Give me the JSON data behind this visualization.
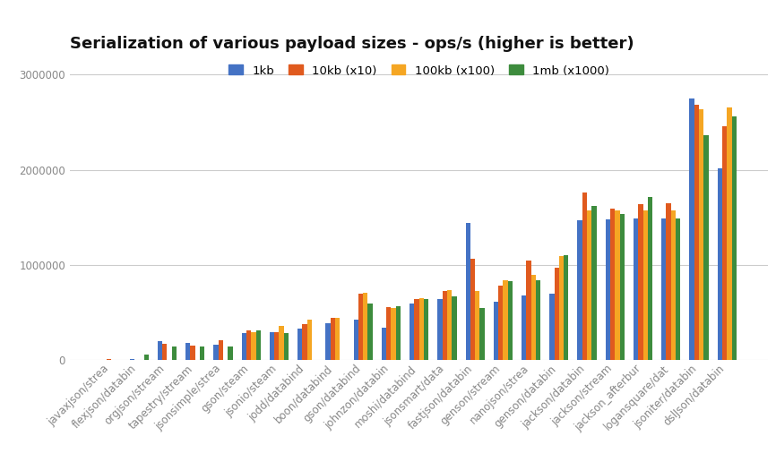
{
  "title": "Serialization of various payload sizes - ops/s (higher is better)",
  "categories": [
    "javaxjson/strea",
    "flexjson/databin",
    "orgjson/stream",
    "tapestry/stream",
    "jsonsimple/strea",
    "gson/steam",
    "jsonio/steam",
    "jodd/databind",
    "boon/databind",
    "gson/databind",
    "johnzon/databin",
    "moshi/databind",
    "jsonsmart/data",
    "fastjson/databin",
    "genson/stream",
    "nanojson/strea",
    "genson/databin",
    "jackson/databin",
    "jackson/stream",
    "jackson_afterbur",
    "logansquare/dat",
    "jsoniter/databin",
    "dslJson/databin"
  ],
  "series": {
    "1kb": [
      8000,
      15000,
      200000,
      185000,
      160000,
      285000,
      295000,
      330000,
      390000,
      430000,
      340000,
      600000,
      640000,
      1440000,
      615000,
      680000,
      700000,
      1470000,
      1480000,
      1490000,
      1490000,
      2750000,
      2020000
    ],
    "10kb_x10": [
      12000,
      5000,
      170000,
      155000,
      215000,
      315000,
      295000,
      380000,
      445000,
      700000,
      555000,
      640000,
      730000,
      1065000,
      780000,
      1045000,
      975000,
      1760000,
      1590000,
      1640000,
      1650000,
      2680000,
      2460000
    ],
    "100kb_x100": [
      5000,
      3000,
      5000,
      5000,
      5000,
      295000,
      360000,
      425000,
      445000,
      710000,
      550000,
      650000,
      740000,
      730000,
      840000,
      900000,
      1095000,
      1570000,
      1575000,
      1575000,
      1575000,
      2640000,
      2650000
    ],
    "1mb_x1000": [
      5000,
      65000,
      150000,
      145000,
      145000,
      315000,
      290000,
      5000,
      5000,
      600000,
      565000,
      640000,
      670000,
      545000,
      835000,
      840000,
      1105000,
      1625000,
      1540000,
      1715000,
      1490000,
      2360000,
      2560000
    ]
  },
  "colors": {
    "1kb": "#4472c4",
    "10kb_x10": "#e05a1e",
    "100kb_x100": "#f5a623",
    "1mb_x1000": "#3d8c3d"
  },
  "legend_labels": [
    "1kb",
    "10kb (x10)",
    "100kb (x100)",
    "1mb (x1000)"
  ],
  "ylim": [
    0,
    3200000
  ],
  "yticks": [
    0,
    1000000,
    2000000,
    3000000
  ],
  "background_color": "#ffffff",
  "grid_color": "#cccccc",
  "title_fontsize": 13,
  "tick_fontsize": 8.5,
  "legend_fontsize": 9.5
}
